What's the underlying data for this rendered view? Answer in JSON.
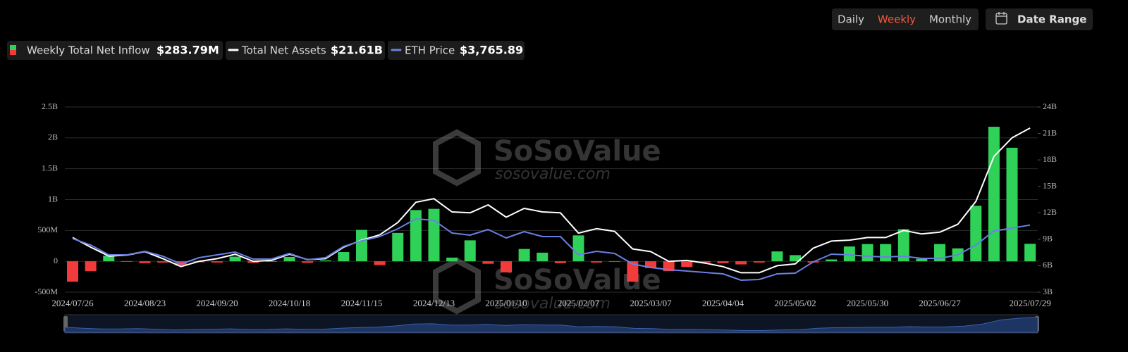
{
  "header": {
    "tabs": [
      "Daily",
      "Weekly",
      "Monthly"
    ],
    "active_tab": 1,
    "date_range": "Date Range"
  },
  "watermark": {
    "brand": "SoSoValue",
    "site": "sosovalue.com"
  },
  "chart_data": {
    "type": "bar",
    "categories": [
      "2024/07/26",
      null,
      null,
      null,
      "2024/08/23",
      null,
      null,
      null,
      "2024/09/20",
      null,
      null,
      null,
      "2024/10/18",
      null,
      null,
      null,
      "2024/11/15",
      null,
      null,
      null,
      "2024/12/13",
      null,
      null,
      null,
      "2025/01/10",
      null,
      null,
      null,
      "2025/02/07",
      null,
      null,
      null,
      "2025/03/07",
      null,
      null,
      null,
      "2025/04/04",
      null,
      null,
      null,
      "2025/05/02",
      null,
      null,
      null,
      "2025/05/30",
      null,
      null,
      null,
      "2025/06/27",
      null,
      null,
      null,
      null,
      "2025/07/29"
    ],
    "series": [
      {
        "name": "Weekly Total Net Inflow",
        "type": "bar",
        "color": "#2fd159",
        "negative_color": "#f23c3c",
        "latest_label": "$283.79M",
        "values": [
          -330000000,
          -160000000,
          90000000,
          -5000000,
          -30000000,
          -20000000,
          -70000000,
          -15000000,
          -20000000,
          75000000,
          -25000000,
          -10000000,
          70000000,
          -25000000,
          15000000,
          150000000,
          510000000,
          -60000000,
          460000000,
          830000000,
          850000000,
          60000000,
          340000000,
          -40000000,
          -180000000,
          200000000,
          140000000,
          -30000000,
          420000000,
          -20000000,
          -10000000,
          -330000000,
          -110000000,
          -160000000,
          -90000000,
          -20000000,
          -30000000,
          -50000000,
          -20000000,
          160000000,
          100000000,
          -20000000,
          30000000,
          240000000,
          280000000,
          280000000,
          520000000,
          40000000,
          280000000,
          210000000,
          900000000,
          2180000000,
          1840000000,
          283790000
        ]
      },
      {
        "name": "Total Net Assets",
        "type": "line",
        "axis": "y2",
        "color": "#ffffff",
        "latest_label": "$21.61B",
        "values": [
          9200000000,
          8100000000,
          7100000000,
          7200000000,
          7600000000,
          6800000000,
          5900000000,
          6500000000,
          6800000000,
          7300000000,
          6500000000,
          6600000000,
          7300000000,
          6700000000,
          6800000000,
          8100000000,
          8900000000,
          9500000000,
          10900000000,
          13200000000,
          13600000000,
          12100000000,
          12000000000,
          12900000000,
          11500000000,
          12500000000,
          12100000000,
          12000000000,
          9700000000,
          10200000000,
          9900000000,
          7900000000,
          7600000000,
          6500000000,
          6600000000,
          6300000000,
          5900000000,
          5200000000,
          5200000000,
          6000000000,
          6200000000,
          8000000000,
          8800000000,
          8900000000,
          9200000000,
          9200000000,
          10000000000,
          9600000000,
          9800000000,
          10700000000,
          13300000000,
          18400000000,
          20500000000,
          21610000000
        ]
      },
      {
        "name": "ETH Price",
        "type": "line",
        "axis": "y3",
        "color": "#6a7fe3",
        "latest_label": "$3,765.89",
        "values": [
          3230,
          2976,
          2584,
          2584,
          2724,
          2528,
          2220,
          2472,
          2584,
          2696,
          2416,
          2416,
          2640,
          2388,
          2472,
          2920,
          3144,
          3312,
          3620,
          4012,
          3956,
          3452,
          3368,
          3592,
          3256,
          3508,
          3312,
          3312,
          2584,
          2724,
          2640,
          2220,
          2080,
          1996,
          1940,
          1884,
          1828,
          1576,
          1604,
          1828,
          1856,
          2304,
          2612,
          2584,
          2528,
          2500,
          2528,
          2444,
          2444,
          2584,
          2976,
          3536,
          3648,
          3765.89
        ]
      }
    ],
    "ylim": [
      -500000000,
      2500000000
    ],
    "yticks": [
      {
        "value": -500000000,
        "label": "-500M"
      },
      0,
      {
        "value": 500000000,
        "label": "500M"
      },
      {
        "value": 1000000000,
        "label": "1B"
      },
      {
        "value": 1500000000,
        "label": "1.5B"
      },
      {
        "value": 2000000000,
        "label": "2B"
      },
      {
        "value": 2500000000,
        "label": "2.5B"
      }
    ],
    "y2lim": [
      3000000000,
      24000000000
    ],
    "y2ticks": [
      {
        "value": 3000000000,
        "label": "3B"
      },
      {
        "value": 6000000000,
        "label": "6B"
      },
      {
        "value": 9000000000,
        "label": "9B"
      },
      {
        "value": 12000000000,
        "label": "12B"
      },
      {
        "value": 15000000000,
        "label": "15B"
      },
      {
        "value": 18000000000,
        "label": "18B"
      },
      {
        "value": 21000000000,
        "label": "21B"
      },
      {
        "value": 24000000000,
        "label": "24B"
      }
    ],
    "y3lim": [
      1100,
      8460
    ],
    "grid": true
  }
}
